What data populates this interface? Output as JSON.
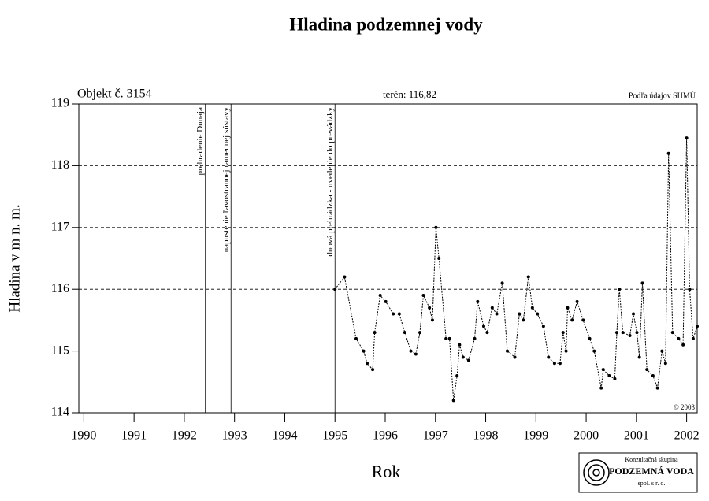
{
  "chart_data": {
    "type": "line",
    "title": "Hladina podzemnej vody",
    "subtitle_left": "Objekt č. 3154",
    "subtitle_center": "terén: 116,82",
    "subtitle_right": "Podľa údajov SHMÚ",
    "copyright": "© 2003",
    "xlabel": "Rok",
    "ylabel": "Hladina v m n. m.",
    "xlim": [
      1989.9,
      2002.21
    ],
    "xticks": [
      1990,
      1991,
      1992,
      1993,
      1994,
      1995,
      1996,
      1997,
      1998,
      1999,
      2000,
      2001,
      2002
    ],
    "ylim": [
      114,
      119
    ],
    "yticks": [
      114,
      115,
      116,
      117,
      118,
      119
    ],
    "grid": true,
    "color": "#000000",
    "events": [
      {
        "x": 1992.42,
        "label": "prehradenie Dunaja"
      },
      {
        "x": 1992.93,
        "label": "napustenie ľavostrannej ramennej sústavy"
      },
      {
        "x": 1995.0,
        "label": "dnová prehrádzka - uvedenie do prevádzky"
      }
    ],
    "x": [
      1995.0,
      1995.19,
      1995.42,
      1995.57,
      1995.64,
      1995.75,
      1995.79,
      1995.9,
      1996.01,
      1996.16,
      1996.28,
      1996.39,
      1996.51,
      1996.61,
      1996.69,
      1996.76,
      1996.88,
      1996.94,
      1997.01,
      1997.07,
      1997.21,
      1997.28,
      1997.36,
      1997.43,
      1997.48,
      1997.55,
      1997.66,
      1997.78,
      1997.84,
      1997.96,
      1998.03,
      1998.13,
      1998.22,
      1998.33,
      1998.43,
      1998.58,
      1998.67,
      1998.75,
      1998.85,
      1998.93,
      1999.03,
      1999.15,
      1999.25,
      1999.37,
      1999.48,
      1999.54,
      1999.6,
      1999.63,
      1999.72,
      1999.82,
      1999.94,
      2000.07,
      2000.16,
      2000.3,
      2000.34,
      2000.46,
      2000.57,
      2000.61,
      2000.66,
      2000.73,
      2000.87,
      2000.94,
      2001.01,
      2001.06,
      2001.12,
      2001.21,
      2001.33,
      2001.42,
      2001.51,
      2001.58,
      2001.64,
      2001.72,
      2001.84,
      2001.93,
      2002.0,
      2002.06,
      2002.13,
      2002.21
    ],
    "values": [
      116.0,
      116.2,
      115.2,
      115.0,
      114.8,
      114.7,
      115.3,
      115.9,
      115.8,
      115.6,
      115.6,
      115.3,
      115.0,
      114.95,
      115.3,
      115.9,
      115.7,
      115.5,
      117.0,
      116.5,
      115.2,
      115.2,
      114.2,
      114.6,
      115.1,
      114.9,
      114.85,
      115.2,
      115.8,
      115.4,
      115.3,
      115.7,
      115.6,
      116.1,
      115.0,
      114.9,
      115.6,
      115.5,
      116.2,
      115.7,
      115.6,
      115.4,
      114.9,
      114.8,
      114.8,
      115.3,
      115.0,
      115.7,
      115.5,
      115.8,
      115.5,
      115.2,
      115.0,
      114.4,
      114.7,
      114.6,
      114.55,
      115.3,
      116.0,
      115.3,
      115.25,
      115.6,
      115.3,
      114.9,
      116.1,
      114.7,
      114.6,
      114.4,
      115.0,
      114.8,
      118.2,
      115.3,
      115.2,
      115.1,
      118.45,
      116.0,
      115.2,
      115.4
    ]
  },
  "logo": {
    "line1": "Konzultačná skupina",
    "line2": "PODZEMNÁ VODA",
    "line3": "spol. s r. o."
  }
}
